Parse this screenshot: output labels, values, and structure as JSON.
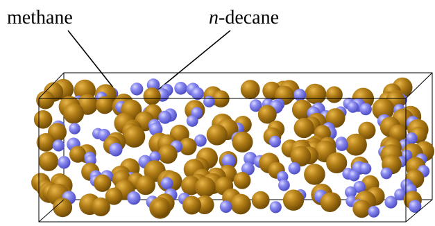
{
  "labels": {
    "methane": "methane",
    "decane_prefix": "n",
    "decane_suffix": "-decane"
  },
  "colors": {
    "methane": "#6e6ee6",
    "decane": "#a87414",
    "box_edge": "#000000"
  },
  "molecule_counts": {
    "methane": 110,
    "decane": 150
  }
}
